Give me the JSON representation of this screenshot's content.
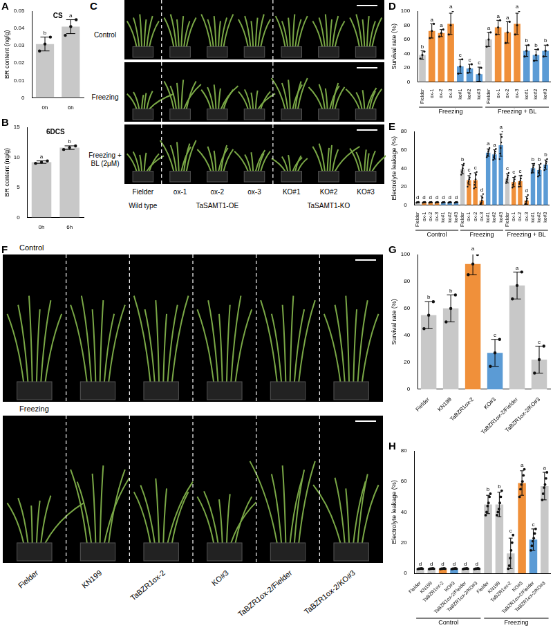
{
  "chart_data": [
    {
      "panel": "A",
      "type": "bar",
      "title": "CS",
      "y_label": "BR content (ng/g)",
      "ylim": [
        0,
        0.05
      ],
      "yticks": [
        0,
        0.01,
        0.02,
        0.03,
        0.04,
        0.05
      ],
      "grid": false,
      "categories": [
        "0h",
        "6h"
      ],
      "values": [
        0.031,
        0.041
      ],
      "errors": [
        0.004,
        0.004
      ],
      "letters": [
        "b",
        "a"
      ],
      "points": [
        [
          0.027,
          0.031,
          0.035
        ],
        [
          0.036,
          0.041,
          0.045
        ]
      ],
      "color": "#c8c8c8"
    },
    {
      "panel": "B",
      "type": "bar",
      "title": "6DCS",
      "y_label": "BR content (ng/g)",
      "ylim": [
        0,
        15
      ],
      "yticks": [
        0,
        5,
        10,
        15
      ],
      "grid": false,
      "categories": [
        "0h",
        "6h"
      ],
      "values": [
        9.2,
        11.6
      ],
      "errors": [
        0.2,
        0.3
      ],
      "letters": [
        "a",
        "b"
      ],
      "points": [
        [
          9.0,
          9.2,
          9.4
        ],
        [
          11.3,
          11.6,
          11.9
        ]
      ],
      "color": "#c8c8c8"
    },
    {
      "panel": "D",
      "type": "bar",
      "y_label": "Survival rate (%)",
      "ylim": [
        0,
        100
      ],
      "yticks": [
        0,
        20,
        40,
        60,
        80,
        100
      ],
      "grid": false,
      "groups": [
        {
          "name": "Freezing",
          "categories": [
            "Fielder",
            "ox-1",
            "ox-2",
            "ox-3",
            "ko#1",
            "ko#2",
            "ko#3"
          ],
          "values": [
            38,
            72,
            69,
            82,
            22,
            19,
            11
          ],
          "errors": [
            6,
            10,
            5,
            15,
            10,
            6,
            10
          ],
          "letters": [
            "b",
            "a",
            "a",
            "a",
            "c",
            "c",
            "c"
          ],
          "points": [
            [
              33,
              38,
              43
            ],
            [
              62,
              72,
              82
            ],
            [
              64,
              69,
              74
            ],
            [
              67,
              80,
              100
            ],
            [
              12,
              22,
              32
            ],
            [
              13,
              19,
              25
            ],
            [
              0,
              11,
              20
            ]
          ],
          "colors": [
            "#c8c8c8",
            "#f0903a",
            "#f0903a",
            "#f0903a",
            "#5b9bd5",
            "#5b9bd5",
            "#5b9bd5"
          ]
        },
        {
          "name": "Freezing + BL",
          "categories": [
            "Fielder",
            "ox-1",
            "ox-2",
            "ox-3",
            "ko#1",
            "ko#2",
            "ko#3"
          ],
          "values": [
            60,
            77,
            70,
            82,
            44,
            38,
            44
          ],
          "errors": [
            10,
            10,
            15,
            15,
            8,
            8,
            8
          ],
          "letters": [
            "a",
            "a",
            "a",
            "a",
            "b",
            "b",
            "b"
          ],
          "points": [
            [
              50,
              60,
              70
            ],
            [
              67,
              77,
              87
            ],
            [
              55,
              70,
              85
            ],
            [
              67,
              80,
              100
            ],
            [
              36,
              44,
              52
            ],
            [
              30,
              38,
              46
            ],
            [
              36,
              44,
              52
            ]
          ],
          "colors": [
            "#c8c8c8",
            "#f0903a",
            "#f0903a",
            "#f0903a",
            "#5b9bd5",
            "#5b9bd5",
            "#5b9bd5"
          ]
        }
      ]
    },
    {
      "panel": "E",
      "type": "bar",
      "y_label": "Electrolyte leakage (%)",
      "ylim": [
        0,
        80
      ],
      "yticks": [
        0,
        20,
        40,
        60,
        80
      ],
      "grid": false,
      "groups": [
        {
          "name": "Control",
          "categories": [
            "Fielder",
            "ox-1",
            "ox-2",
            "ox-3",
            "ko#1",
            "ko#2",
            "ko#3"
          ],
          "values": [
            3,
            3,
            3,
            3,
            3,
            3,
            3
          ],
          "errors": [
            0.5,
            0.5,
            0.5,
            0.5,
            0.5,
            0.5,
            0.5
          ],
          "letters": [
            "d",
            "d",
            "d",
            "d",
            "d",
            "d",
            "d"
          ],
          "points": [
            [
              2.5,
              3,
              3.2,
              2.8,
              3.5,
              3
            ],
            [
              2.5,
              3,
              3.2,
              2.8,
              3.5,
              3
            ],
            [
              2.5,
              3,
              3.2,
              2.8,
              3.5,
              3
            ],
            [
              2.5,
              3,
              3.2,
              2.8,
              3.5,
              3
            ],
            [
              2.5,
              3,
              3.2,
              2.8,
              3.5,
              3
            ],
            [
              2.5,
              3,
              3.2,
              2.8,
              3.5,
              3
            ],
            [
              2.5,
              3,
              3.2,
              2.8,
              3.5,
              3
            ]
          ],
          "colors": [
            "#c8c8c8",
            "#f0903a",
            "#f0903a",
            "#f0903a",
            "#5b9bd5",
            "#5b9bd5",
            "#5b9bd5"
          ]
        },
        {
          "name": "Freezing",
          "categories": [
            "Fielder",
            "ox-1",
            "ox-2",
            "ox-3",
            "ko#1",
            "ko#2",
            "ko#3"
          ],
          "values": [
            39,
            27,
            27,
            5,
            57,
            55,
            65
          ],
          "errors": [
            5,
            5,
            8,
            5,
            4,
            5,
            12
          ],
          "letters": [
            "b",
            "c",
            "c",
            "d",
            "a",
            "a",
            "a"
          ],
          "points": [
            [
              33,
              36,
              38,
              40,
              43,
              45
            ],
            [
              20,
              24,
              26,
              28,
              30,
              34
            ],
            [
              18,
              22,
              25,
              28,
              33,
              36
            ],
            [
              1,
              2,
              3,
              5,
              8,
              12
            ],
            [
              52,
              54,
              56,
              58,
              60,
              62
            ],
            [
              49,
              52,
              54,
              56,
              58,
              61
            ],
            [
              50,
              56,
              62,
              68,
              74,
              80
            ]
          ],
          "colors": [
            "#c8c8c8",
            "#f0903a",
            "#f0903a",
            "#f0903a",
            "#5b9bd5",
            "#5b9bd5",
            "#5b9bd5"
          ]
        },
        {
          "name": "Freezing + BL",
          "categories": [
            "Fielder",
            "ox-1",
            "ox-2",
            "ox-3",
            "ko#1",
            "ko#2",
            "ko#3"
          ],
          "values": [
            29,
            25,
            26,
            5,
            40,
            38,
            44
          ],
          "errors": [
            5,
            5,
            6,
            4,
            5,
            6,
            5
          ],
          "letters": [
            "c",
            "c",
            "c",
            "d",
            "b",
            "b",
            "b"
          ],
          "points": [
            [
              24,
              26,
              28,
              30,
              32,
              35
            ],
            [
              19,
              22,
              24,
              26,
              28,
              31
            ],
            [
              20,
              23,
              25,
              27,
              29,
              32
            ],
            [
              1,
              2,
              4,
              5,
              7,
              11
            ],
            [
              35,
              37,
              39,
              41,
              43,
              45
            ],
            [
              31,
              35,
              37,
              39,
              41,
              45
            ],
            [
              38,
              41,
              43,
              45,
              47,
              50
            ]
          ],
          "colors": [
            "#c8c8c8",
            "#f0903a",
            "#f0903a",
            "#f0903a",
            "#5b9bd5",
            "#5b9bd5",
            "#5b9bd5"
          ]
        }
      ]
    },
    {
      "panel": "G",
      "type": "bar",
      "y_label": "Survival rate (%)",
      "ylim": [
        0,
        100
      ],
      "yticks": [
        0,
        20,
        40,
        60,
        80,
        100
      ],
      "grid": false,
      "categories": [
        "Fielder",
        "KN199",
        "TaBZR1ox-2",
        "KO#3",
        "TaBZR1ox-2/Fielder",
        "TaBZR1ox-2/KO#3"
      ],
      "values": [
        55,
        60,
        93,
        27,
        77,
        22
      ],
      "errors": [
        10,
        10,
        8,
        10,
        10,
        10
      ],
      "letters": [
        "b",
        "b",
        "a",
        "c",
        "a",
        "c"
      ],
      "points": [
        [
          45,
          55,
          65
        ],
        [
          50,
          60,
          70
        ],
        [
          85,
          93,
          100
        ],
        [
          17,
          27,
          37
        ],
        [
          67,
          77,
          87
        ],
        [
          12,
          22,
          32
        ]
      ],
      "colors": [
        "#c8c8c8",
        "#c8c8c8",
        "#f0903a",
        "#5b9bd5",
        "#c8c8c8",
        "#c8c8c8"
      ]
    },
    {
      "panel": "H",
      "type": "bar",
      "y_label": "Electrolyte leakage (%)",
      "ylim": [
        0,
        80
      ],
      "yticks": [
        0,
        20,
        40,
        60,
        80
      ],
      "grid": false,
      "groups": [
        {
          "name": "Control",
          "categories": [
            "Fielder",
            "KN199",
            "TaBZR1ox-2",
            "KO#3",
            "TaBZR1ox-2/Fielder",
            "TaBZR1ox-2/KO#3"
          ],
          "values": [
            3,
            3,
            3,
            3,
            3,
            3
          ],
          "errors": [
            0.3,
            0.3,
            0.3,
            0.3,
            0.3,
            0.3
          ],
          "letters": [
            "d",
            "d",
            "d",
            "d",
            "d",
            "d"
          ],
          "points": [
            [
              2.8,
              3,
              3,
              3.1,
              3.2,
              3
            ],
            [
              2.8,
              3,
              3,
              3.1,
              3.2,
              3
            ],
            [
              2.8,
              3,
              3,
              3.1,
              3.2,
              3
            ],
            [
              2.8,
              3,
              3,
              3.1,
              3.2,
              3
            ],
            [
              2.8,
              3,
              3,
              3.1,
              3.2,
              3
            ],
            [
              2.8,
              3,
              3,
              3.1,
              3.2,
              3
            ]
          ],
          "colors": [
            "#c8c8c8",
            "#c8c8c8",
            "#f0903a",
            "#5b9bd5",
            "#c8c8c8",
            "#c8c8c8"
          ]
        },
        {
          "name": "Freezing",
          "categories": [
            "Fielder",
            "KN199",
            "TaBZR1ox-2",
            "KO#3",
            "TaBZR1ox-2/Fielder",
            "TaBZR1ox-2/KO#3"
          ],
          "values": [
            45,
            45,
            13,
            59,
            22,
            57
          ],
          "errors": [
            6,
            8,
            10,
            8,
            7,
            9
          ],
          "letters": [
            "b",
            "b",
            "c",
            "a",
            "c",
            "a"
          ],
          "points": [
            [
              38,
              40,
              44,
              46,
              50,
              52
            ],
            [
              38,
              40,
              42,
              46,
              50,
              54
            ],
            [
              3,
              5,
              10,
              15,
              20,
              25
            ],
            [
              50,
              55,
              58,
              60,
              64,
              68
            ],
            [
              15,
              18,
              21,
              23,
              26,
              29
            ],
            [
              48,
              52,
              56,
              58,
              62,
              66
            ]
          ],
          "colors": [
            "#c8c8c8",
            "#c8c8c8",
            "#c8c8c8",
            "#f0903a",
            "#5b9bd5",
            "#c8c8c8"
          ]
        }
      ]
    }
  ],
  "photo_panels": [
    {
      "panel": "C",
      "row_labels": [
        "Control",
        "Freezing",
        "Freezing + BL (2μM)"
      ],
      "columns": [
        "Fielder",
        "ox-1",
        "ox-2",
        "ox-3",
        "KO#1",
        "KO#2",
        "KO#3"
      ],
      "column_groups": [
        {
          "name": "Wild type",
          "size": 1
        },
        {
          "name": "TaSAMT1-OE",
          "size": 3
        },
        {
          "name": "TaSAMT1-KO",
          "size": 3
        }
      ]
    },
    {
      "panel": "F",
      "row_labels": [
        "Control",
        "Freezing"
      ],
      "columns": [
        "Fielder",
        "KN199",
        "TaBZR1ox-2",
        "KO#3",
        "TaBZR1ox-2/Fielder",
        "TaBZR1ox-2/KO#3"
      ]
    }
  ]
}
